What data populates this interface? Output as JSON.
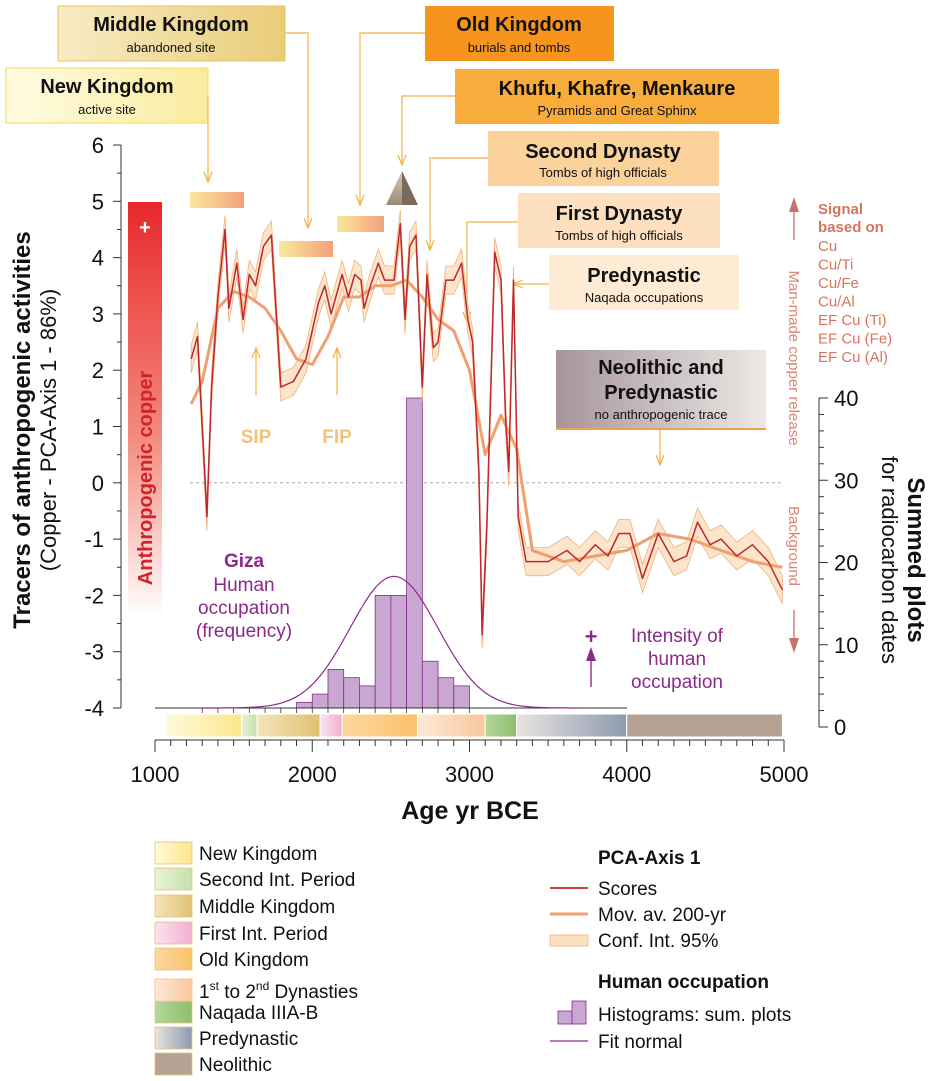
{
  "chart_data": {
    "type": "line",
    "xlabel": "Age yr BCE",
    "ylabel_left_line1": "Tracers of anthropogenic activities",
    "ylabel_left_line2": "(Copper - PCA-Axis 1 - 86%)",
    "ylabel_right_line1": "Summed plots",
    "ylabel_right_line2": "for radiocarbon dates",
    "xlim": [
      1000,
      5000
    ],
    "ylim_left": [
      -4,
      6
    ],
    "ylim_right": [
      0,
      40
    ],
    "x_ticks": [
      "1000",
      "2000",
      "3000",
      "4000",
      "5000"
    ],
    "y_ticks_left": [
      "6",
      "5",
      "4",
      "3",
      "2",
      "1",
      "0",
      "-1",
      "-2",
      "-3",
      "-4"
    ],
    "y_ticks_right": [
      "40",
      "30",
      "20",
      "10",
      "0"
    ],
    "series": [
      {
        "name": "Scores",
        "color": "#c0272d",
        "x": [
          1230,
          1270,
          1330,
          1360,
          1400,
          1445,
          1470,
          1520,
          1560,
          1600,
          1640,
          1690,
          1740,
          1800,
          1880,
          1960,
          2040,
          2080,
          2120,
          2190,
          2230,
          2270,
          2310,
          2330,
          2370,
          2420,
          2460,
          2520,
          2560,
          2590,
          2620,
          2660,
          2700,
          2730,
          2770,
          2800,
          2850,
          2900,
          2950,
          2990,
          3020,
          3060,
          3080,
          3110,
          3160,
          3200,
          3230,
          3250,
          3280,
          3310,
          3360,
          3500,
          3620,
          3700,
          3800,
          3880,
          3950,
          4020,
          4100,
          4200,
          4300,
          4380,
          4450,
          4530,
          4600,
          4700,
          4800,
          4900,
          4990
        ],
        "values": [
          2.2,
          2.6,
          -0.6,
          1.7,
          3.3,
          4.5,
          3.1,
          3.9,
          2.9,
          3.7,
          3.5,
          4.2,
          4.4,
          1.7,
          1.8,
          2.2,
          3.2,
          3.5,
          3.0,
          3.7,
          3.3,
          3.7,
          3.6,
          3.1,
          3.5,
          3.9,
          3.6,
          3.6,
          4.6,
          2.9,
          4.2,
          4.4,
          1.7,
          3.7,
          2.4,
          2.5,
          3.6,
          3.6,
          3.9,
          2.9,
          2.5,
          0.2,
          -2.7,
          -0.8,
          4.1,
          3.6,
          1.1,
          0.2,
          3.6,
          -0.6,
          -1.4,
          -1.4,
          -1.2,
          -1.4,
          -1.1,
          -1.3,
          -0.9,
          -0.9,
          -1.7,
          -0.9,
          -1.4,
          -1.3,
          -0.7,
          -1.1,
          -1.0,
          -1.3,
          -1.1,
          -1.4,
          -1.9
        ]
      },
      {
        "name": "Mov. av. 200-yr",
        "color": "#f0a070",
        "x": [
          1230,
          1300,
          1400,
          1500,
          1600,
          1700,
          1800,
          1900,
          2000,
          2100,
          2200,
          2300,
          2400,
          2500,
          2600,
          2700,
          2800,
          2900,
          3000,
          3100,
          3200,
          3300,
          3400,
          3600,
          3800,
          4000,
          4200,
          4400,
          4600,
          4800,
          4990
        ],
        "values": [
          1.4,
          1.8,
          3.1,
          3.4,
          3.3,
          3.1,
          2.7,
          2.2,
          2.1,
          2.6,
          3.3,
          3.3,
          3.5,
          3.5,
          3.6,
          3.3,
          2.9,
          2.7,
          2.0,
          0.5,
          1.2,
          0.6,
          -1.2,
          -1.4,
          -1.3,
          -1.2,
          -0.9,
          -1.0,
          -1.2,
          -1.4,
          -1.5
        ]
      }
    ],
    "confidence_band_halfwidth": 0.25,
    "histogram": {
      "name": "Histograms: sum. plots",
      "color": "#c8a8d2",
      "bin_width": 100,
      "bins_start": [
        1500,
        1900,
        2000,
        2100,
        2200,
        2300,
        2400,
        2500,
        2600,
        2700,
        2800,
        2900,
        3400
      ],
      "values": [
        1,
        3,
        4,
        7,
        6,
        5,
        16,
        16,
        40,
        8,
        6,
        5,
        1
      ]
    },
    "fit_normal": {
      "name": "Fit normal",
      "color": "#8a2a8a",
      "mean": 2520,
      "sd": 280,
      "peak": 16
    },
    "zero_line": 0
  },
  "period_bar": [
    {
      "from": 1070,
      "to": 1550,
      "c1": "#fffbd8",
      "c2": "#fbe58e"
    },
    {
      "from": 1550,
      "to": 1650,
      "c1": "#e8f3d6",
      "c2": "#c8dfae"
    },
    {
      "from": 1650,
      "to": 2050,
      "c1": "#f3e4bb",
      "c2": "#e0c172"
    },
    {
      "from": 2050,
      "to": 2190,
      "c1": "#fbe3ef",
      "c2": "#f2aed0"
    },
    {
      "from": 2190,
      "to": 2670,
      "c1": "#fdd7a0",
      "c2": "#fac26a"
    },
    {
      "from": 2670,
      "to": 3100,
      "c1": "#fde9d6",
      "c2": "#f8c79d"
    },
    {
      "from": 3100,
      "to": 3300,
      "c1": "#b4d69a",
      "c2": "#8fbe6a"
    },
    {
      "from": 3300,
      "to": 4000,
      "c1": "#e8e4df",
      "c2": "#8e9ab0"
    },
    {
      "from": 4000,
      "to": 4990,
      "c1": "#b5a293",
      "c2": "#b5a293"
    }
  ],
  "annotations": {
    "middle_kingdom_title": "Middle Kingdom",
    "middle_kingdom_sub": "abandoned site",
    "old_kingdom_title": "Old Kingdom",
    "old_kingdom_sub": "burials and tombs",
    "new_kingdom_title": "New Kingdom",
    "new_kingdom_sub": "active site",
    "pyramids_title": "Khufu, Khafre, Menkaure",
    "pyramids_sub": "Pyramids and Great Sphinx",
    "second_dynasty_title": "Second Dynasty",
    "second_dynasty_sub": "Tombs of high officials",
    "first_dynasty_title": "First Dynasty",
    "first_dynasty_sub": "Tombs of high officials",
    "predynastic_title": "Predynastic",
    "predynastic_sub": "Naqada occupations",
    "neolithic_title_1": "Neolithic and",
    "neolithic_title_2": "Predynastic",
    "neolithic_sub": "no anthropogenic trace",
    "sip": "SIP",
    "fip": "FIP",
    "giza_1": "Giza",
    "giza_2": "Human",
    "giza_3": "occupation",
    "giza_4": "(frequency)",
    "intensity_plus": "+",
    "intensity_1": "Intensity of",
    "intensity_2": "human",
    "intensity_3": "occupation",
    "anthro_copper": "Anthropogenic copper",
    "anthro_plus": "+",
    "signal_1": "Signal",
    "signal_2": "based on",
    "signal_items": [
      "Cu",
      "Cu/Ti",
      "Cu/Fe",
      "Cu/Al",
      "EF Cu (Ti)",
      "EF Cu (Fe)",
      "EF Cu (Al)"
    ],
    "manmade": "Man-made copper release",
    "background": "Background"
  },
  "legend_periods": {
    "items": [
      {
        "label": "New Kingdom",
        "c1": "#fffbd8",
        "c2": "#fbe58e"
      },
      {
        "label": "Second Int. Period",
        "c1": "#e8f3d6",
        "c2": "#c8dfae"
      },
      {
        "label": "Middle Kingdom",
        "c1": "#f3e4bb",
        "c2": "#e0c172"
      },
      {
        "label": "First Int. Period",
        "c1": "#fbe3ef",
        "c2": "#f2aed0"
      },
      {
        "label": "Old Kingdom",
        "c1": "#fdd7a0",
        "c2": "#fac26a"
      },
      {
        "label": "Naqada IIIA-B",
        "c1": "#b4d69a",
        "c2": "#8fbe6a"
      },
      {
        "label": "Predynastic",
        "c1": "#e8e4df",
        "c2": "#8e9ab0"
      },
      {
        "label": "Neolithic",
        "c1": "#b5a293",
        "c2": "#b5a293"
      }
    ],
    "dynasties_prefix_1": "1",
    "dynasties_sup_1": "st",
    "dynasties_mid": " to 2",
    "dynasties_sup_2": "nd",
    "dynasties_suffix": " Dynasties"
  },
  "legend_pca": {
    "title": "PCA-Axis 1",
    "scores": "Scores",
    "movav": "Mov. av. 200-yr",
    "confint": "Conf. Int. 95%"
  },
  "legend_human": {
    "title": "Human occupation",
    "hist": "Histograms: sum. plots",
    "fit": "Fit normal"
  }
}
